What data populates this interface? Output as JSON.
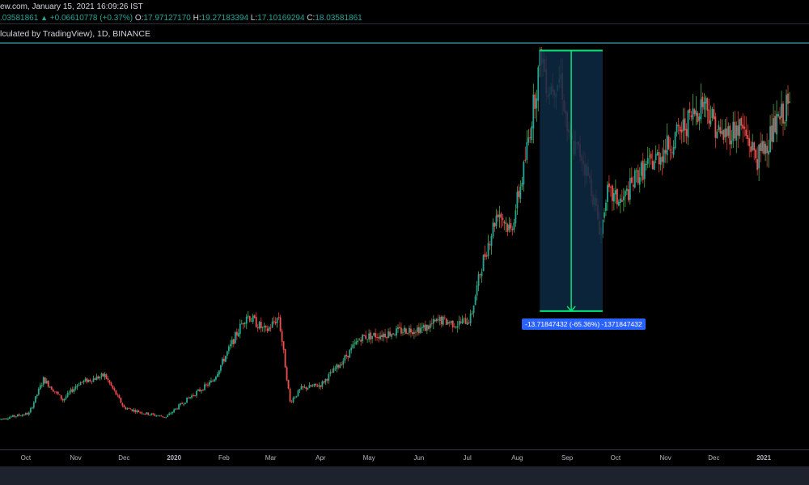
{
  "header": {
    "line1": "ew.com, January 15, 2021 16:09:26 IST",
    "price_now": ".03581861",
    "change": "+0.06610778 (+0.37%)",
    "o_label": "O:",
    "o_value": "17.97127170",
    "h_label": "H:",
    "h_value": "19.27183394",
    "l_label": "L:",
    "l_value": "17.10169294",
    "c_label": "C:",
    "c_value": "18.03581861",
    "symbol_line": "lculated by TradingView), 1D, BINANCE"
  },
  "measure": {
    "label": "-13.71847432 (-65.36%) -1371847432"
  },
  "colors": {
    "up": "#26a69a",
    "down": "#ef5350",
    "up_wick": "#4caf50",
    "down_wick": "#e53935",
    "hline": "#4dd0e1",
    "measure": "#00e676",
    "measure_fill": "#0e2a44",
    "label_bg": "#2962ff"
  },
  "chart_data": {
    "type": "candlestick",
    "timeframe": "1D",
    "x_tick_labels": [
      "Oct",
      "Nov",
      "Dec",
      "2020",
      "Feb",
      "Mar",
      "Apr",
      "May",
      "Jun",
      "Jul",
      "Aug",
      "Sep",
      "Oct",
      "Nov",
      "Dec",
      "2021"
    ],
    "x_range": [
      "2019-09-15",
      "2021-01-17"
    ],
    "last": {
      "open": 17.9712717,
      "high": 19.27183394,
      "low": 17.10169294,
      "close": 18.03581861,
      "change": 0.06610778,
      "change_pct": 0.37
    },
    "price_path": [
      [
        "2019-09-15",
        1.6
      ],
      [
        "2019-10-03",
        1.9
      ],
      [
        "2019-10-12",
        3.7
      ],
      [
        "2019-10-24",
        2.6
      ],
      [
        "2019-11-03",
        3.5
      ],
      [
        "2019-11-19",
        3.9
      ],
      [
        "2019-12-01",
        2.2
      ],
      [
        "2019-12-14",
        1.9
      ],
      [
        "2019-12-27",
        1.7
      ],
      [
        "2020-01-10",
        2.7
      ],
      [
        "2020-01-25",
        3.6
      ],
      [
        "2020-02-15",
        7.1
      ],
      [
        "2020-02-27",
        6.2
      ],
      [
        "2020-03-06",
        7.0
      ],
      [
        "2020-03-13",
        2.5
      ],
      [
        "2020-03-20",
        3.2
      ],
      [
        "2020-04-01",
        3.4
      ],
      [
        "2020-04-14",
        4.6
      ],
      [
        "2020-04-26",
        5.9
      ],
      [
        "2020-05-12",
        6.1
      ],
      [
        "2020-05-25",
        6.3
      ],
      [
        "2020-06-05",
        6.4
      ],
      [
        "2020-06-14",
        6.8
      ],
      [
        "2020-06-25",
        6.6
      ],
      [
        "2020-07-03",
        6.9
      ],
      [
        "2020-07-10",
        9.7
      ],
      [
        "2020-07-20",
        12.6
      ],
      [
        "2020-07-28",
        11.5
      ],
      [
        "2020-08-05",
        14.7
      ],
      [
        "2020-08-10",
        17.5
      ],
      [
        "2020-08-16",
        20.9
      ],
      [
        "2020-08-20",
        19.0
      ],
      [
        "2020-08-28",
        19.6
      ],
      [
        "2020-09-02",
        16.2
      ],
      [
        "2020-09-10",
        15.5
      ],
      [
        "2020-09-16",
        13.8
      ],
      [
        "2020-09-22",
        11.3
      ],
      [
        "2020-09-25",
        13.5
      ],
      [
        "2020-10-05",
        13.0
      ],
      [
        "2020-10-15",
        14.5
      ],
      [
        "2020-10-25",
        15.2
      ],
      [
        "2020-11-10",
        16.7
      ],
      [
        "2020-11-25",
        18.4
      ],
      [
        "2020-12-05",
        16.5
      ],
      [
        "2020-12-18",
        17.0
      ],
      [
        "2020-12-28",
        15.3
      ],
      [
        "2021-01-07",
        16.8
      ],
      [
        "2021-01-15",
        18.0
      ]
    ],
    "horizontal_line_price": 21.4,
    "measure_tool": {
      "start_date": "2020-08-15",
      "end_date": "2020-09-23",
      "from_price": 21.0,
      "to_price": 7.28,
      "change": -13.71847432,
      "change_pct": -65.36,
      "ticks": -1371847432
    }
  }
}
